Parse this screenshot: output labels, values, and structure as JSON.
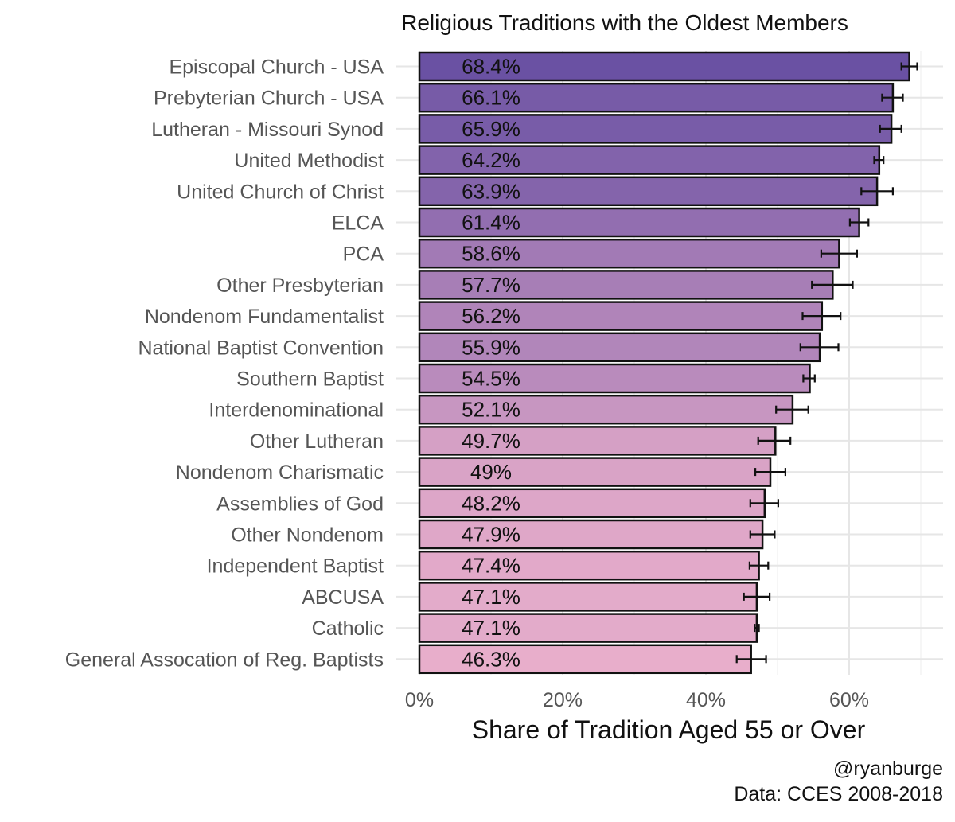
{
  "chart_data": {
    "type": "bar",
    "orientation": "horizontal",
    "title": "Religious Traditions with the Oldest Members",
    "xlabel": "Share of Tradition Aged 55 or Over",
    "ylabel": "",
    "xlim": [
      0,
      0.72
    ],
    "x_ticks": [
      0,
      0.2,
      0.4,
      0.6
    ],
    "x_tick_labels": [
      "0%",
      "20%",
      "40%",
      "60%"
    ],
    "grid": true,
    "legend": "none",
    "color_low": "#e8aecb",
    "color_high": "#6a51a3",
    "categories": [
      "Episcopal Church - USA",
      "Prebyterian Church - USA",
      "Lutheran - Missouri Synod",
      "United Methodist",
      "United Church of Christ",
      "ELCA",
      "PCA",
      "Other Presbyterian",
      "Nondenom Fundamentalist",
      "National Baptist Convention",
      "Southern Baptist",
      "Interdenominational",
      "Other Lutheran",
      "Nondenom Charismatic",
      "Assemblies of God",
      "Other Nondenom",
      "Independent Baptist",
      "ABCUSA",
      "Catholic",
      "General Assocation of Reg. Baptists"
    ],
    "values": [
      0.684,
      0.661,
      0.659,
      0.642,
      0.639,
      0.614,
      0.586,
      0.577,
      0.562,
      0.559,
      0.545,
      0.521,
      0.497,
      0.49,
      0.482,
      0.479,
      0.474,
      0.471,
      0.471,
      0.463
    ],
    "value_labels": [
      "68.4%",
      "66.1%",
      "65.9%",
      "64.2%",
      "63.9%",
      "61.4%",
      "58.6%",
      "57.7%",
      "56.2%",
      "55.9%",
      "54.5%",
      "52.1%",
      "49.7%",
      "49%",
      "48.2%",
      "47.9%",
      "47.4%",
      "47.1%",
      "47.1%",
      "46.3%"
    ],
    "error_low": [
      0.673,
      0.646,
      0.643,
      0.635,
      0.617,
      0.601,
      0.561,
      0.548,
      0.535,
      0.532,
      0.536,
      0.498,
      0.473,
      0.469,
      0.462,
      0.462,
      0.461,
      0.453,
      0.468,
      0.443
    ],
    "error_high": [
      0.695,
      0.675,
      0.673,
      0.648,
      0.661,
      0.627,
      0.611,
      0.605,
      0.588,
      0.585,
      0.552,
      0.543,
      0.518,
      0.511,
      0.501,
      0.496,
      0.487,
      0.489,
      0.474,
      0.484
    ],
    "caption_lines": [
      "@ryanburge",
      "Data: CCES 2008-2018"
    ]
  }
}
